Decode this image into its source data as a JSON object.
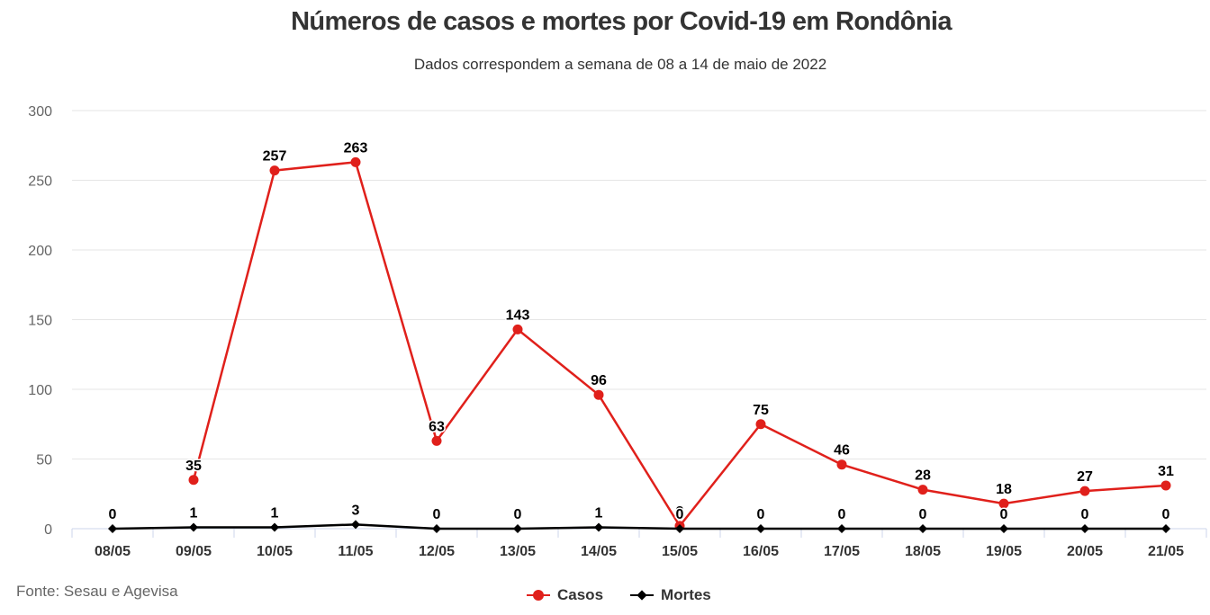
{
  "chart_data": {
    "type": "line",
    "title": "Números de casos e mortes por Covid-19 em Rondônia",
    "subtitle": "Dados correspondem a semana de 08 a 14 de maio de 2022",
    "source": "Fonte: Sesau e Agevisa",
    "categories": [
      "08/05",
      "09/05",
      "10/05",
      "11/05",
      "12/05",
      "13/05",
      "14/05",
      "15/05",
      "16/05",
      "17/05",
      "18/05",
      "19/05",
      "20/05",
      "21/05"
    ],
    "series": [
      {
        "name": "Casos",
        "color": "#e0201b",
        "marker": "circle",
        "values": [
          null,
          35,
          257,
          263,
          63,
          143,
          96,
          2,
          75,
          46,
          28,
          18,
          27,
          31
        ]
      },
      {
        "name": "Mortes",
        "color": "#000000",
        "marker": "diamond",
        "values": [
          0,
          1,
          1,
          3,
          0,
          0,
          1,
          0,
          0,
          0,
          0,
          0,
          0,
          0
        ]
      }
    ],
    "ylim": [
      0,
      300
    ],
    "yticks": [
      0,
      50,
      100,
      150,
      200,
      250,
      300
    ],
    "grid": true,
    "legend": "bottom-center"
  }
}
